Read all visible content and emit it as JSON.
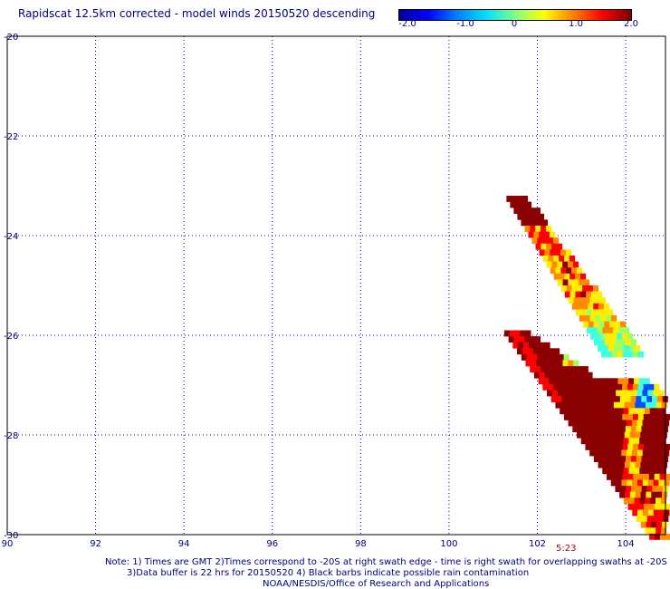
{
  "title": "Rapidscat 12.5km corrected - model winds 20150520 descending",
  "colorbar": {
    "ticks": [
      "-2.0",
      "-1.0",
      "0",
      "1.0",
      "2.0"
    ],
    "colors": [
      "#0000a0",
      "#0000ff",
      "#0080ff",
      "#00e0ff",
      "#80ff80",
      "#ffff00",
      "#ff8000",
      "#ff0000",
      "#800000"
    ]
  },
  "axes": {
    "lon_ticks": [
      "90",
      "92",
      "94",
      "96",
      "98",
      "100",
      "102",
      "104"
    ],
    "lat_ticks": [
      "-20",
      "-22",
      "-24",
      "-26",
      "-28",
      "-30"
    ],
    "lon_range": [
      90,
      104.9
    ],
    "lat_range": [
      -20,
      -30
    ]
  },
  "time_label": "5:23",
  "footer": {
    "line1": "Note: 1) Times are GMT 2)Times correspond to -20S at right swath edge - time is right swath for overlapping swaths at -20S",
    "line2": "3)Data buffer is 22 hrs for 20150520 4) Black barbs indicate possible rain contamination",
    "line3": "NOAA/NESDIS/Office of Research and Applications"
  },
  "swath_colors": {
    "dark_red": "#8b0000",
    "red": "#ff0000",
    "orange": "#ff8c00",
    "yellow": "#ffee00",
    "light_green": "#a0ff60",
    "cyan": "#40ffe0",
    "blue": "#0050ff"
  }
}
